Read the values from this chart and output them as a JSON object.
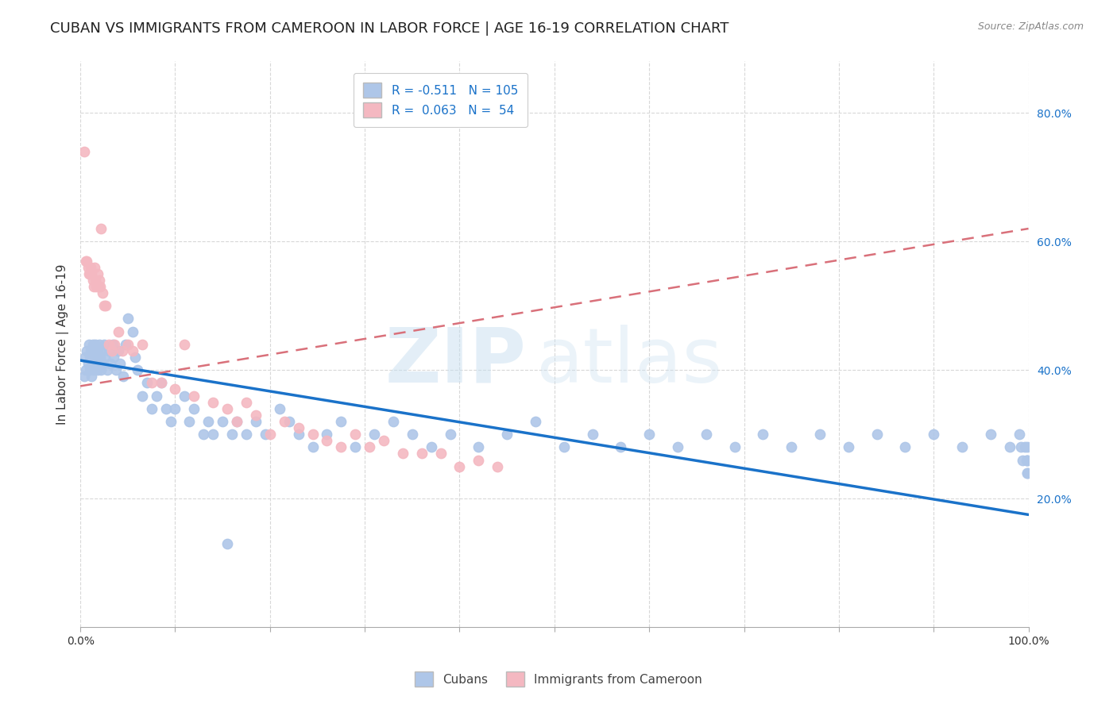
{
  "title": "CUBAN VS IMMIGRANTS FROM CAMEROON IN LABOR FORCE | AGE 16-19 CORRELATION CHART",
  "source": "Source: ZipAtlas.com",
  "ylabel": "In Labor Force | Age 16-19",
  "xlim": [
    0.0,
    1.0
  ],
  "ylim": [
    0.0,
    0.88
  ],
  "yticks": [
    0.2,
    0.4,
    0.6,
    0.8
  ],
  "yticklabels": [
    "20.0%",
    "40.0%",
    "60.0%",
    "80.0%"
  ],
  "xticks": [
    0.0,
    0.1,
    0.2,
    0.3,
    0.4,
    0.5,
    0.6,
    0.7,
    0.8,
    0.9,
    1.0
  ],
  "xticklabels": [
    "0.0%",
    "",
    "",
    "",
    "",
    "",
    "",
    "",
    "",
    "",
    "100.0%"
  ],
  "cubans_color": "#aec6e8",
  "cameroon_color": "#f4b8c1",
  "blue_line_color": "#1a72c9",
  "pink_line_color": "#d9707a",
  "watermark_zip": "ZIP",
  "watermark_atlas": "atlas",
  "background_color": "#ffffff",
  "grid_color": "#d8d8d8",
  "title_fontsize": 13,
  "axis_label_fontsize": 11,
  "tick_fontsize": 10,
  "legend_fontsize": 11,
  "cubans_x": [
    0.004,
    0.005,
    0.006,
    0.007,
    0.008,
    0.009,
    0.01,
    0.01,
    0.011,
    0.012,
    0.012,
    0.013,
    0.013,
    0.014,
    0.015,
    0.015,
    0.016,
    0.017,
    0.018,
    0.018,
    0.019,
    0.02,
    0.021,
    0.022,
    0.023,
    0.024,
    0.025,
    0.026,
    0.028,
    0.03,
    0.032,
    0.034,
    0.035,
    0.038,
    0.04,
    0.042,
    0.045,
    0.048,
    0.05,
    0.055,
    0.058,
    0.06,
    0.065,
    0.07,
    0.075,
    0.08,
    0.085,
    0.09,
    0.095,
    0.1,
    0.11,
    0.115,
    0.12,
    0.13,
    0.135,
    0.14,
    0.15,
    0.155,
    0.16,
    0.165,
    0.175,
    0.185,
    0.195,
    0.21,
    0.22,
    0.23,
    0.245,
    0.26,
    0.275,
    0.29,
    0.31,
    0.33,
    0.35,
    0.37,
    0.39,
    0.42,
    0.45,
    0.48,
    0.51,
    0.54,
    0.57,
    0.6,
    0.63,
    0.66,
    0.69,
    0.72,
    0.75,
    0.78,
    0.81,
    0.84,
    0.87,
    0.9,
    0.93,
    0.96,
    0.98,
    0.99,
    0.992,
    0.994,
    0.996,
    0.998,
    0.999,
    0.999,
    0.999,
    0.999,
    0.999
  ],
  "cubans_y": [
    0.39,
    0.42,
    0.4,
    0.43,
    0.41,
    0.44,
    0.42,
    0.4,
    0.43,
    0.41,
    0.39,
    0.44,
    0.42,
    0.4,
    0.43,
    0.41,
    0.44,
    0.42,
    0.4,
    0.43,
    0.41,
    0.44,
    0.42,
    0.4,
    0.43,
    0.41,
    0.44,
    0.42,
    0.4,
    0.43,
    0.41,
    0.44,
    0.42,
    0.4,
    0.43,
    0.41,
    0.39,
    0.44,
    0.48,
    0.46,
    0.42,
    0.4,
    0.36,
    0.38,
    0.34,
    0.36,
    0.38,
    0.34,
    0.32,
    0.34,
    0.36,
    0.32,
    0.34,
    0.3,
    0.32,
    0.3,
    0.32,
    0.13,
    0.3,
    0.32,
    0.3,
    0.32,
    0.3,
    0.34,
    0.32,
    0.3,
    0.28,
    0.3,
    0.32,
    0.28,
    0.3,
    0.32,
    0.3,
    0.28,
    0.3,
    0.28,
    0.3,
    0.32,
    0.28,
    0.3,
    0.28,
    0.3,
    0.28,
    0.3,
    0.28,
    0.3,
    0.28,
    0.3,
    0.28,
    0.3,
    0.28,
    0.3,
    0.28,
    0.3,
    0.28,
    0.3,
    0.28,
    0.26,
    0.28,
    0.26,
    0.28,
    0.26,
    0.24,
    0.26,
    0.24
  ],
  "cameroon_x": [
    0.004,
    0.006,
    0.007,
    0.008,
    0.009,
    0.01,
    0.011,
    0.012,
    0.013,
    0.014,
    0.015,
    0.016,
    0.017,
    0.018,
    0.019,
    0.02,
    0.021,
    0.022,
    0.023,
    0.025,
    0.027,
    0.03,
    0.033,
    0.036,
    0.04,
    0.044,
    0.05,
    0.055,
    0.065,
    0.075,
    0.085,
    0.1,
    0.11,
    0.12,
    0.14,
    0.155,
    0.165,
    0.175,
    0.185,
    0.2,
    0.215,
    0.23,
    0.245,
    0.26,
    0.275,
    0.29,
    0.305,
    0.32,
    0.34,
    0.36,
    0.38,
    0.4,
    0.42,
    0.44
  ],
  "cameroon_y": [
    0.74,
    0.57,
    0.57,
    0.56,
    0.55,
    0.55,
    0.56,
    0.55,
    0.54,
    0.53,
    0.56,
    0.54,
    0.53,
    0.55,
    0.53,
    0.54,
    0.53,
    0.62,
    0.52,
    0.5,
    0.5,
    0.44,
    0.43,
    0.44,
    0.46,
    0.43,
    0.44,
    0.43,
    0.44,
    0.38,
    0.38,
    0.37,
    0.44,
    0.36,
    0.35,
    0.34,
    0.32,
    0.35,
    0.33,
    0.3,
    0.32,
    0.31,
    0.3,
    0.29,
    0.28,
    0.3,
    0.28,
    0.29,
    0.27,
    0.27,
    0.27,
    0.25,
    0.26,
    0.25
  ],
  "blue_trend_x": [
    0.0,
    1.0
  ],
  "blue_trend_y": [
    0.415,
    0.175
  ],
  "pink_trend_x": [
    0.0,
    1.0
  ],
  "pink_trend_y": [
    0.375,
    0.62
  ]
}
